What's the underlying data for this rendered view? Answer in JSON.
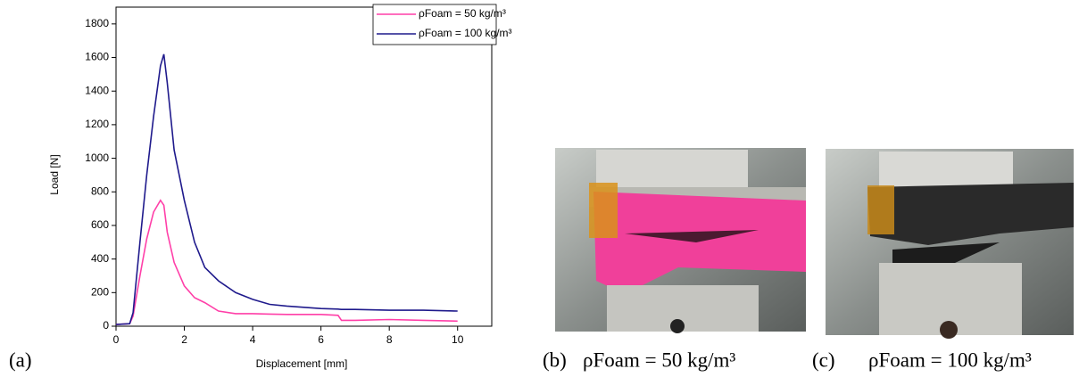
{
  "chart_data": {
    "type": "line",
    "x_label": "Displacement [mm]",
    "y_label": "Load [N]",
    "x": [
      0,
      0.4,
      0.5,
      0.7,
      0.9,
      1.1,
      1.3,
      1.4,
      1.5,
      1.7,
      2,
      2.3,
      2.6,
      3,
      3.5,
      4,
      4.5,
      5,
      6,
      6.5,
      6.6,
      7,
      8,
      9,
      10
    ],
    "series": [
      {
        "name": "ρFoam =  50 kg/m³",
        "color": "#ff3fa8",
        "values": [
          10,
          15,
          60,
          300,
          520,
          680,
          750,
          720,
          560,
          380,
          240,
          170,
          140,
          90,
          75,
          75,
          72,
          70,
          70,
          65,
          35,
          35,
          40,
          35,
          30
        ]
      },
      {
        "name": "ρFoam = 100 kg/m³",
        "color": "#1f1a8c",
        "values": [
          10,
          15,
          80,
          500,
          900,
          1250,
          1550,
          1620,
          1450,
          1050,
          750,
          500,
          350,
          270,
          200,
          160,
          130,
          120,
          105,
          102,
          100,
          100,
          95,
          95,
          90
        ]
      }
    ],
    "xlim": [
      0,
      11
    ],
    "xticks": [
      0,
      2,
      4,
      6,
      8,
      10
    ],
    "ylim": [
      0,
      1900
    ],
    "yticks": [
      0,
      200,
      400,
      600,
      800,
      1000,
      1200,
      1400,
      1600,
      1800
    ],
    "legend": "upper right"
  },
  "panels": [
    {
      "label": "(a)"
    },
    {
      "label": "(b)",
      "caption": "ρFoam = 50 kg/m³"
    },
    {
      "label": "(c)",
      "caption": "ρFoam = 100 kg/m³"
    }
  ]
}
